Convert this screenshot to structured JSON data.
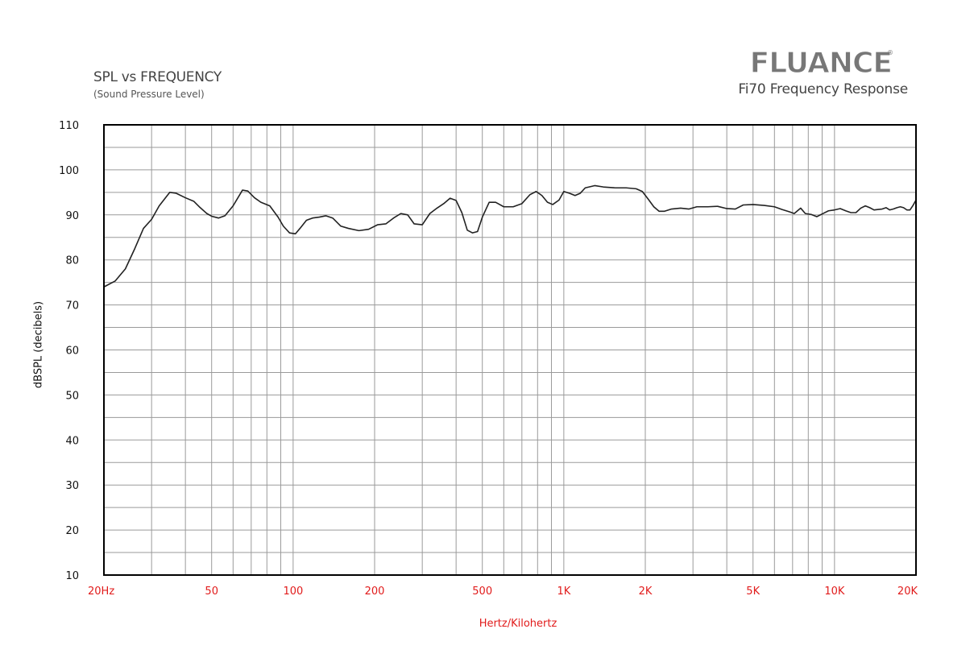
{
  "header": {
    "title": "SPL vs FREQUENCY",
    "subtitle": "(Sound Pressure Level)",
    "brand": "FLUANCE",
    "brand_mark": "®",
    "product_title": "Fi70 Frequency Response"
  },
  "colors": {
    "axis_tick_x": "#e11b1b",
    "grid": "#9a9a9a",
    "frame": "#000000",
    "curve": "#222222",
    "logo_fill": "#777777"
  },
  "chart_data": {
    "type": "line",
    "x_scale": "log",
    "xlim": [
      20,
      20000
    ],
    "ylim": [
      10,
      110
    ],
    "grid": true,
    "xlabel": "Hertz/Kilohertz",
    "ylabel": "dBSPL (decibels)",
    "y_ticks": [
      {
        "value": 110,
        "label": "110"
      },
      {
        "value": 100,
        "label": "100"
      },
      {
        "value": 90,
        "label": "90"
      },
      {
        "value": 80,
        "label": "80"
      },
      {
        "value": 70,
        "label": "70"
      },
      {
        "value": 60,
        "label": "60"
      },
      {
        "value": 50,
        "label": "50"
      },
      {
        "value": 40,
        "label": "40"
      },
      {
        "value": 30,
        "label": "30"
      },
      {
        "value": 20,
        "label": "20"
      },
      {
        "value": 10,
        "label": "10"
      }
    ],
    "x_ticks": [
      {
        "value": 20,
        "label": "20Hz"
      },
      {
        "value": 50,
        "label": "50"
      },
      {
        "value": 100,
        "label": "100"
      },
      {
        "value": 200,
        "label": "200"
      },
      {
        "value": 500,
        "label": "500"
      },
      {
        "value": 1000,
        "label": "1K"
      },
      {
        "value": 2000,
        "label": "2K"
      },
      {
        "value": 5000,
        "label": "5K"
      },
      {
        "value": 10000,
        "label": "10K"
      },
      {
        "value": 20000,
        "label": "20K"
      }
    ],
    "series": [
      {
        "points": [
          [
            20,
            74
          ],
          [
            22,
            75.3
          ],
          [
            24,
            78
          ],
          [
            26,
            82.5
          ],
          [
            28,
            87
          ],
          [
            30,
            89
          ],
          [
            32,
            92
          ],
          [
            35,
            95
          ],
          [
            37,
            94.8
          ],
          [
            40,
            93.8
          ],
          [
            43,
            93
          ],
          [
            45,
            91.8
          ],
          [
            48,
            90.3
          ],
          [
            50,
            89.7
          ],
          [
            53,
            89.3
          ],
          [
            56,
            89.8
          ],
          [
            60,
            92
          ],
          [
            65,
            95.5
          ],
          [
            68,
            95.3
          ],
          [
            72,
            93.8
          ],
          [
            76,
            92.8
          ],
          [
            82,
            92
          ],
          [
            88,
            89.5
          ],
          [
            92,
            87.5
          ],
          [
            97,
            86
          ],
          [
            102,
            85.8
          ],
          [
            106,
            87
          ],
          [
            112,
            88.8
          ],
          [
            118,
            89.3
          ],
          [
            125,
            89.5
          ],
          [
            132,
            89.8
          ],
          [
            140,
            89.3
          ],
          [
            150,
            87.5
          ],
          [
            160,
            87
          ],
          [
            175,
            86.5
          ],
          [
            190,
            86.8
          ],
          [
            205,
            87.8
          ],
          [
            220,
            88
          ],
          [
            235,
            89.3
          ],
          [
            250,
            90.3
          ],
          [
            265,
            90
          ],
          [
            280,
            88
          ],
          [
            300,
            87.8
          ],
          [
            320,
            90.3
          ],
          [
            340,
            91.5
          ],
          [
            360,
            92.5
          ],
          [
            380,
            93.7
          ],
          [
            400,
            93.2
          ],
          [
            420,
            90.5
          ],
          [
            440,
            86.6
          ],
          [
            460,
            86
          ],
          [
            480,
            86.3
          ],
          [
            500,
            89.5
          ],
          [
            530,
            92.8
          ],
          [
            560,
            92.8
          ],
          [
            600,
            91.8
          ],
          [
            650,
            91.8
          ],
          [
            700,
            92.5
          ],
          [
            750,
            94.5
          ],
          [
            790,
            95.2
          ],
          [
            830,
            94.3
          ],
          [
            870,
            92.8
          ],
          [
            910,
            92.3
          ],
          [
            960,
            93.3
          ],
          [
            1000,
            95.2
          ],
          [
            1050,
            94.8
          ],
          [
            1100,
            94.3
          ],
          [
            1150,
            94.8
          ],
          [
            1200,
            96
          ],
          [
            1300,
            96.5
          ],
          [
            1400,
            96.2
          ],
          [
            1550,
            96
          ],
          [
            1700,
            96
          ],
          [
            1850,
            95.8
          ],
          [
            1950,
            95.2
          ],
          [
            2050,
            93.5
          ],
          [
            2150,
            91.8
          ],
          [
            2250,
            90.8
          ],
          [
            2350,
            90.8
          ],
          [
            2500,
            91.3
          ],
          [
            2700,
            91.5
          ],
          [
            2900,
            91.3
          ],
          [
            3100,
            91.8
          ],
          [
            3400,
            91.8
          ],
          [
            3700,
            91.9
          ],
          [
            4000,
            91.4
          ],
          [
            4300,
            91.3
          ],
          [
            4600,
            92.2
          ],
          [
            5000,
            92.3
          ],
          [
            5500,
            92.1
          ],
          [
            6000,
            91.8
          ],
          [
            6400,
            91.2
          ],
          [
            6800,
            90.7
          ],
          [
            7100,
            90.3
          ],
          [
            7500,
            91.5
          ],
          [
            7800,
            90.3
          ],
          [
            8200,
            90.1
          ],
          [
            8600,
            89.6
          ],
          [
            9000,
            90.2
          ],
          [
            9500,
            90.9
          ],
          [
            10000,
            91.1
          ],
          [
            10500,
            91.4
          ],
          [
            11000,
            90.9
          ],
          [
            11500,
            90.5
          ],
          [
            12000,
            90.5
          ],
          [
            12500,
            91.5
          ],
          [
            13000,
            92
          ],
          [
            13500,
            91.6
          ],
          [
            14000,
            91.1
          ],
          [
            14500,
            91.2
          ],
          [
            15000,
            91.3
          ],
          [
            15500,
            91.6
          ],
          [
            16000,
            91.1
          ],
          [
            16500,
            91.3
          ],
          [
            17000,
            91.6
          ],
          [
            17500,
            91.8
          ],
          [
            18000,
            91.6
          ],
          [
            18500,
            91.1
          ],
          [
            19000,
            91.1
          ],
          [
            19500,
            92.1
          ],
          [
            20000,
            93.3
          ]
        ]
      }
    ]
  }
}
